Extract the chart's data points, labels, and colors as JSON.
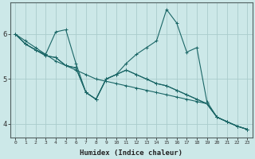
{
  "xlabel": "Humidex (Indice chaleur)",
  "bg_color": "#cce8e8",
  "grid_color": "#aacccc",
  "line_color": "#1a6666",
  "xlim": [
    -0.5,
    23.5
  ],
  "ylim": [
    3.7,
    6.7
  ],
  "yticks": [
    4,
    5,
    6
  ],
  "xticks": [
    0,
    1,
    2,
    3,
    4,
    5,
    6,
    7,
    8,
    9,
    10,
    11,
    12,
    13,
    14,
    15,
    16,
    17,
    18,
    19,
    20,
    21,
    22,
    23
  ],
  "series": [
    [
      6.0,
      5.85,
      5.7,
      5.55,
      5.4,
      5.3,
      5.2,
      5.1,
      5.0,
      4.95,
      4.9,
      4.85,
      4.8,
      4.75,
      4.7,
      4.65,
      4.6,
      4.55,
      4.5,
      4.45,
      4.15,
      4.05,
      3.95,
      3.88
    ],
    [
      6.0,
      5.78,
      5.65,
      5.55,
      6.05,
      6.1,
      5.35,
      4.7,
      4.55,
      5.0,
      5.1,
      5.35,
      5.55,
      5.7,
      5.85,
      6.55,
      6.25,
      5.6,
      5.7,
      4.5,
      4.15,
      4.05,
      3.95,
      3.88
    ],
    [
      6.0,
      5.78,
      5.65,
      5.52,
      5.48,
      5.3,
      5.25,
      4.7,
      4.55,
      5.0,
      5.1,
      5.2,
      5.1,
      5.0,
      4.9,
      4.85,
      4.75,
      4.65,
      4.55,
      4.45,
      4.15,
      4.05,
      3.95,
      3.88
    ],
    [
      6.0,
      5.78,
      5.65,
      5.52,
      5.48,
      5.3,
      5.25,
      4.7,
      4.55,
      5.0,
      5.1,
      5.2,
      5.1,
      5.0,
      4.9,
      4.85,
      4.75,
      4.65,
      4.55,
      4.45,
      4.15,
      4.05,
      3.95,
      3.88
    ]
  ]
}
